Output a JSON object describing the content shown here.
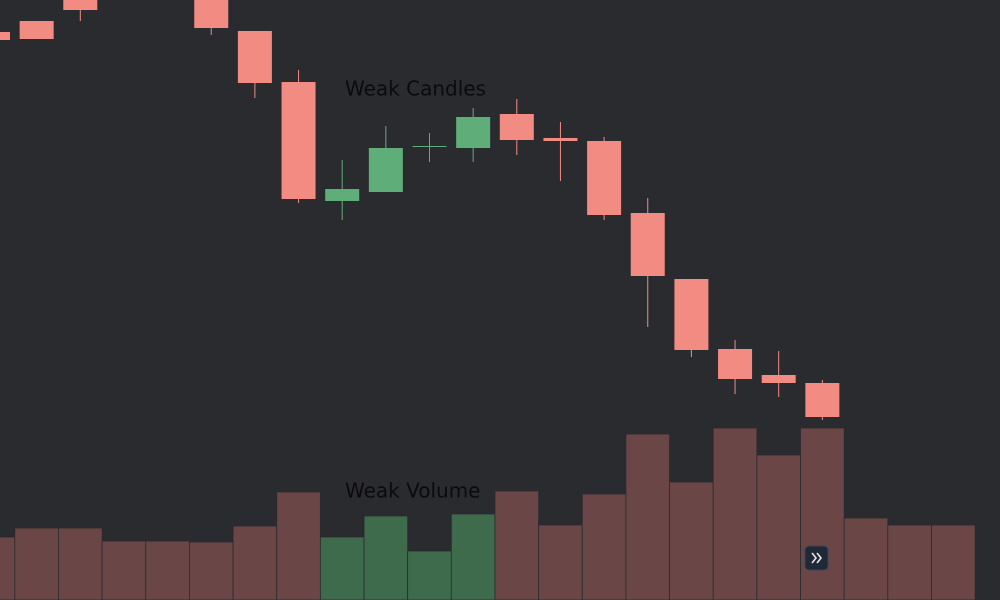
{
  "chart_data": {
    "type": "candlestick",
    "annotations": [
      "Weak Candles",
      "Weak Volume"
    ],
    "open": [
      568,
      579,
      600,
      null,
      null,
      600,
      569,
      518,
      399,
      408,
      453,
      452,
      486,
      462,
      459,
      387,
      321,
      251,
      225,
      217,
      null,
      null,
      null
    ],
    "high": [
      568,
      579,
      600,
      null,
      null,
      600,
      569,
      530,
      440,
      474,
      467,
      492,
      501,
      478,
      463,
      402,
      321,
      260,
      249,
      220,
      null,
      null,
      null
    ],
    "low": [
      560,
      561,
      579,
      null,
      null,
      565,
      502,
      397,
      380,
      408,
      438,
      438,
      445,
      419,
      380,
      273,
      243,
      206,
      203,
      180,
      null,
      null,
      null
    ],
    "close": [
      560,
      561,
      590,
      null,
      null,
      572,
      517,
      401,
      411,
      452,
      454,
      483,
      460,
      459,
      385,
      324,
      250,
      221,
      217,
      183,
      null,
      null,
      null
    ],
    "volume": [
      63,
      72,
      72,
      59,
      59,
      58,
      74,
      108,
      63,
      84,
      49,
      86,
      109,
      75,
      106,
      166,
      118,
      172,
      145,
      172,
      82,
      75,
      75
    ],
    "ylim": [
      0,
      600
    ],
    "volume_ylim": [
      0,
      600
    ],
    "up_color": "#5fae7a",
    "down_color": "#f28b82",
    "volume_up_color": "#3f6b4d",
    "volume_down_color": "#6a4646"
  }
}
